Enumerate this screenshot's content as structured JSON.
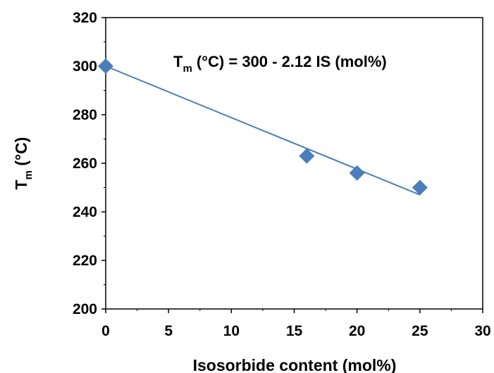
{
  "chart_data": {
    "type": "scatter",
    "xlabel": "Isosorbide content (mol%)",
    "ylabel": {
      "main": "T",
      "sub": "m",
      "rest": " (°C)"
    },
    "xlim": [
      0,
      30
    ],
    "ylim": [
      200,
      320
    ],
    "x_ticks": [
      0,
      5,
      10,
      15,
      20,
      25,
      30
    ],
    "y_ticks": [
      200,
      220,
      240,
      260,
      280,
      300,
      320
    ],
    "x_tick_labels": [
      "0",
      "5",
      "10",
      "15",
      "20",
      "25",
      "30"
    ],
    "y_tick_labels": [
      "200",
      "220",
      "240",
      "260",
      "280",
      "300",
      "320"
    ],
    "grid": false,
    "series": [
      {
        "x": [
          0,
          16,
          20,
          25
        ],
        "y": [
          300,
          263,
          256,
          250
        ],
        "marker": "diamond",
        "color": "#4A7EBB"
      }
    ],
    "trendline": {
      "intercept": 300,
      "slope": -2.12,
      "x_range": [
        0,
        25
      ],
      "color": "#4A7EBB"
    },
    "annotation": {
      "main": "T",
      "sub": "m",
      "rest": " (°C) = 300 - 2.12 IS (mol%)"
    }
  }
}
